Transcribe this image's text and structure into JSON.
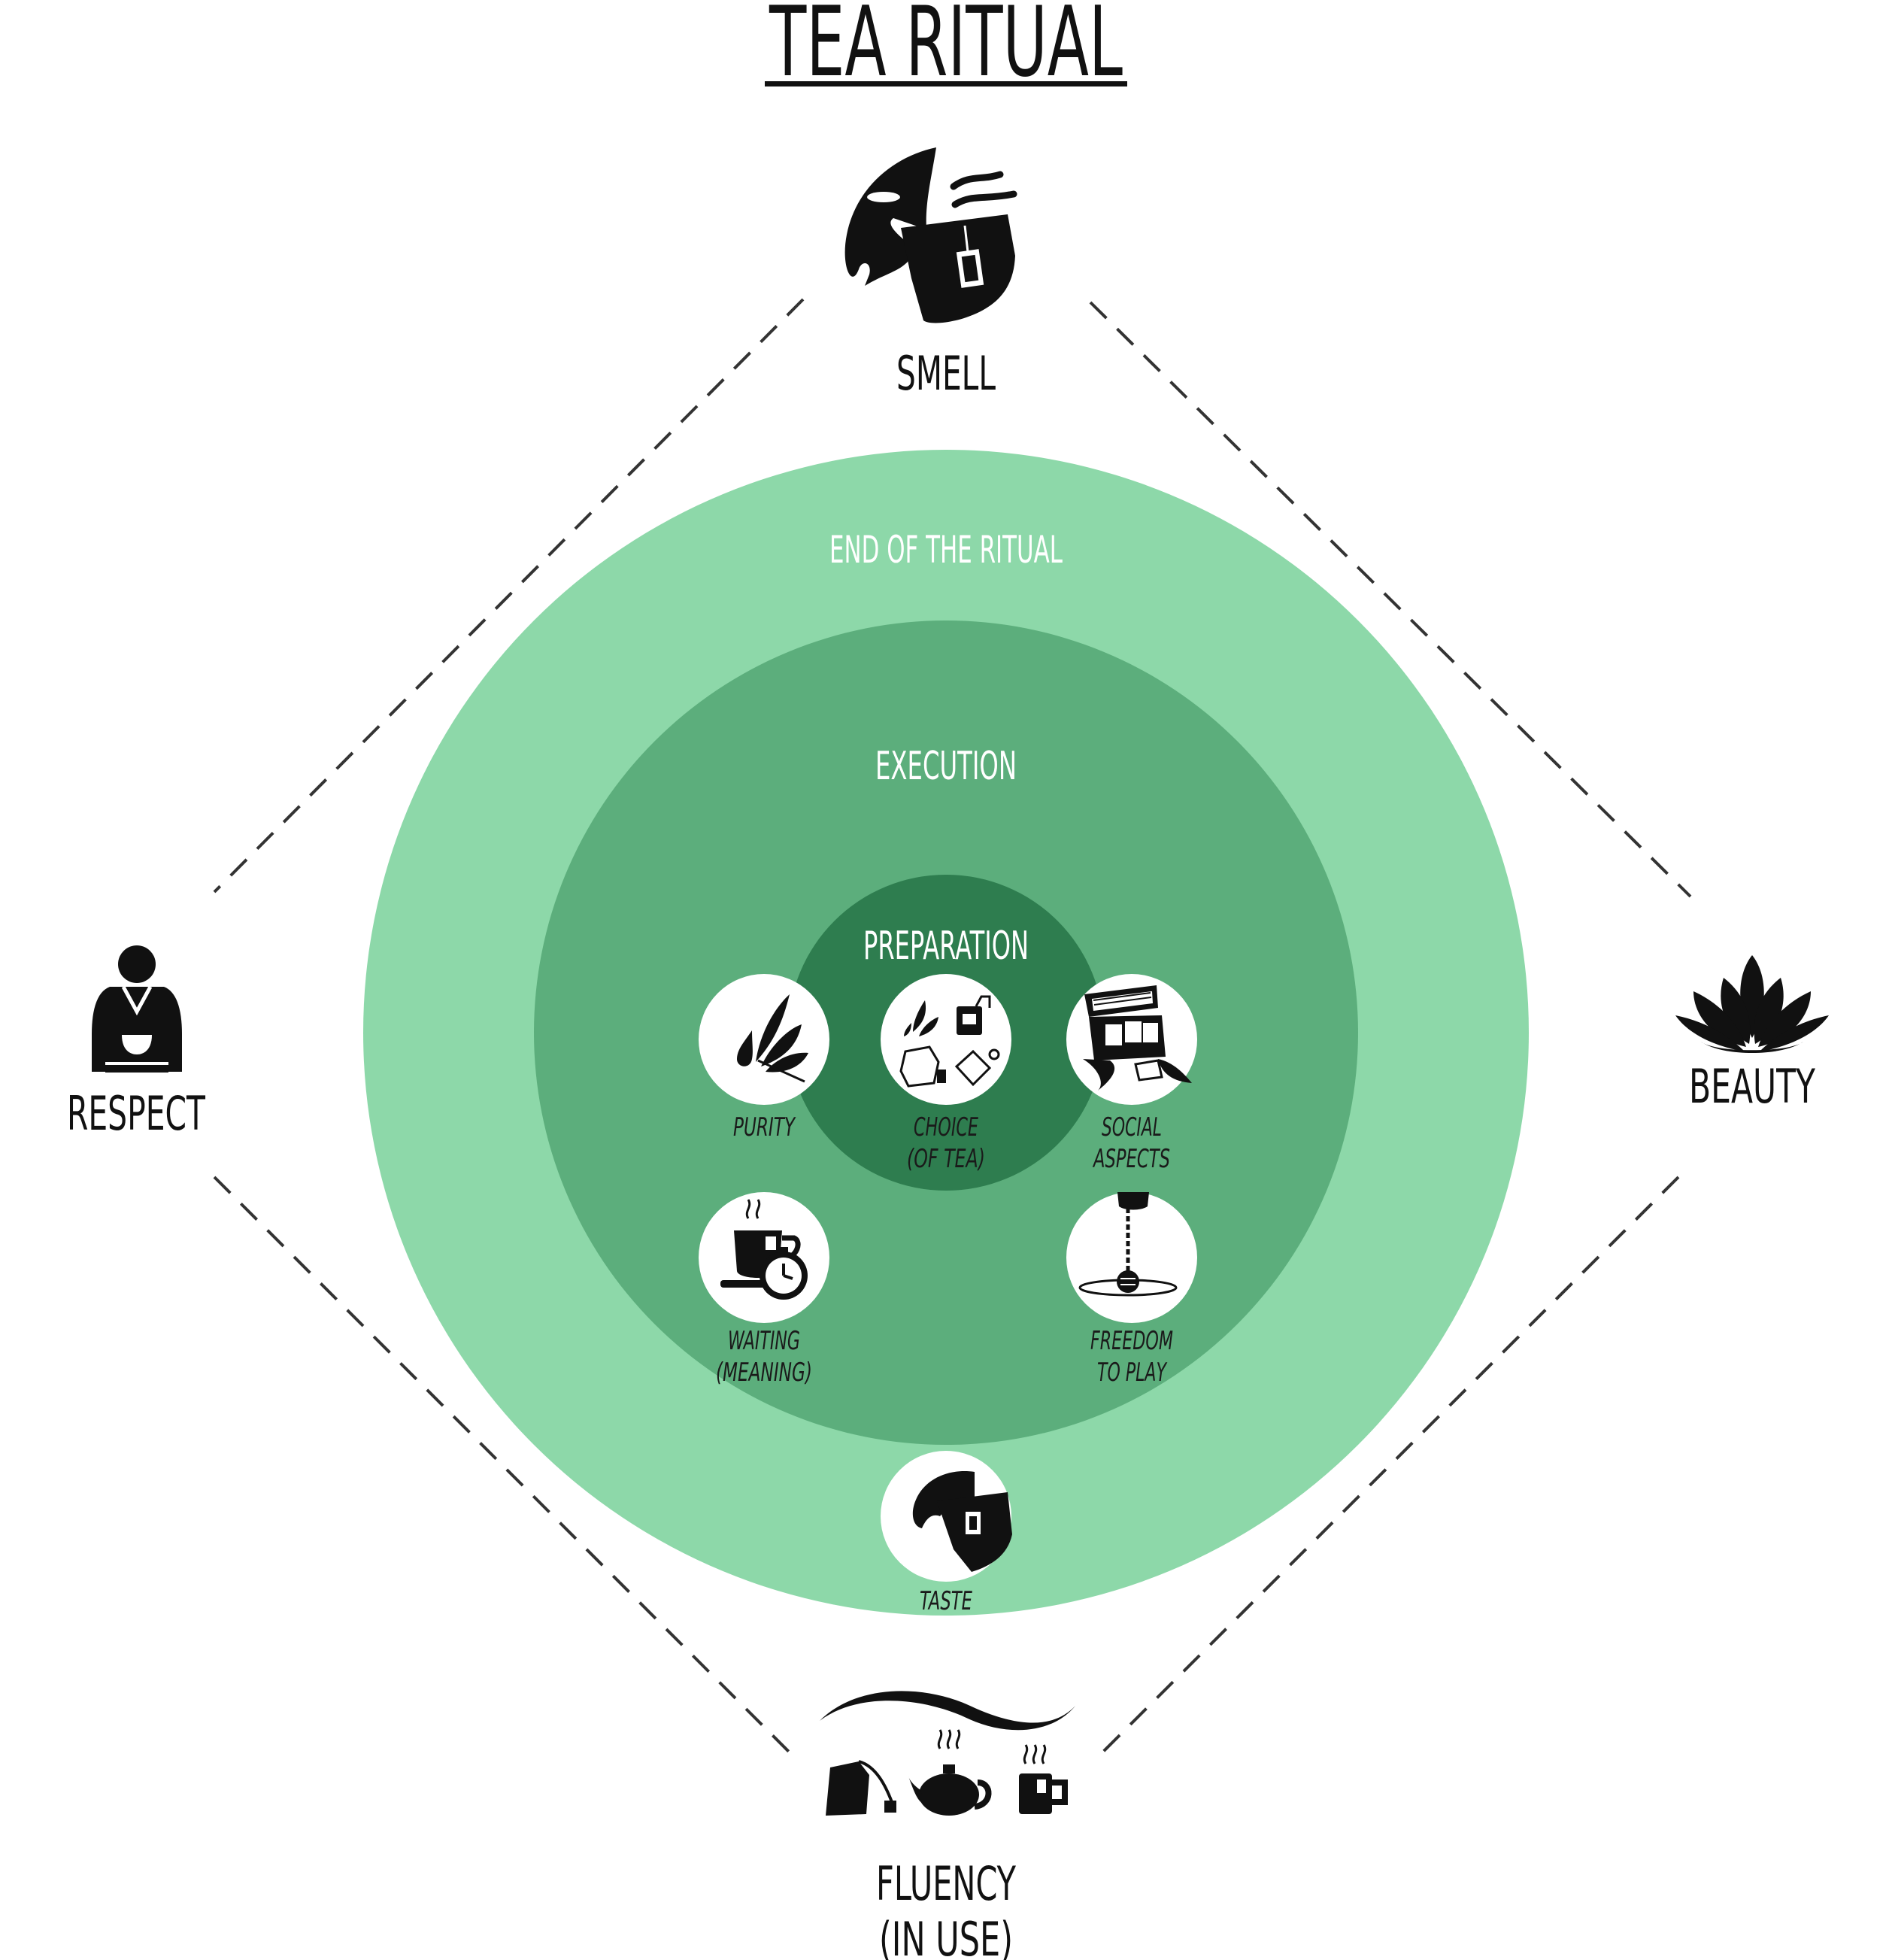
{
  "title": "TEA RITUAL",
  "colors": {
    "outer_ring": "#8dd8a9",
    "middle_ring": "#5cae7c",
    "inner_ring": "#2e7d4f",
    "ink": "#111111",
    "white": "#ffffff"
  },
  "corners": {
    "top": {
      "label": "SMELL",
      "icon": "smell-icon"
    },
    "left": {
      "label": "RESPECT",
      "icon": "person-holding-cup-icon"
    },
    "right": {
      "label": "BEAUTY",
      "icon": "lotus-icon"
    },
    "bottom": {
      "line1": "FLUENCY",
      "line2": "(IN USE)",
      "icon": "tea-utensils-icon"
    }
  },
  "rings": {
    "outer": "END OF THE RITUAL",
    "middle": "EXECUTION",
    "inner": "PREPARATION"
  },
  "items": {
    "purity": {
      "line1": "PURITY",
      "icon": "leaf-drop-icon"
    },
    "choice": {
      "line1": "CHOICE",
      "line2": "(OF TEA)",
      "icon": "tea-types-icon"
    },
    "social": {
      "line1": "SOCIAL",
      "line2": "ASPECTS",
      "icon": "tea-box-icon"
    },
    "waiting": {
      "line1": "WAITING",
      "line2": "(MEANING)",
      "icon": "cup-timer-icon"
    },
    "freedom": {
      "line1": "FREEDOM",
      "line2": "TO PLAY",
      "icon": "tea-infuser-icon"
    },
    "taste": {
      "line1": "TASTE",
      "icon": "taste-icon"
    }
  }
}
